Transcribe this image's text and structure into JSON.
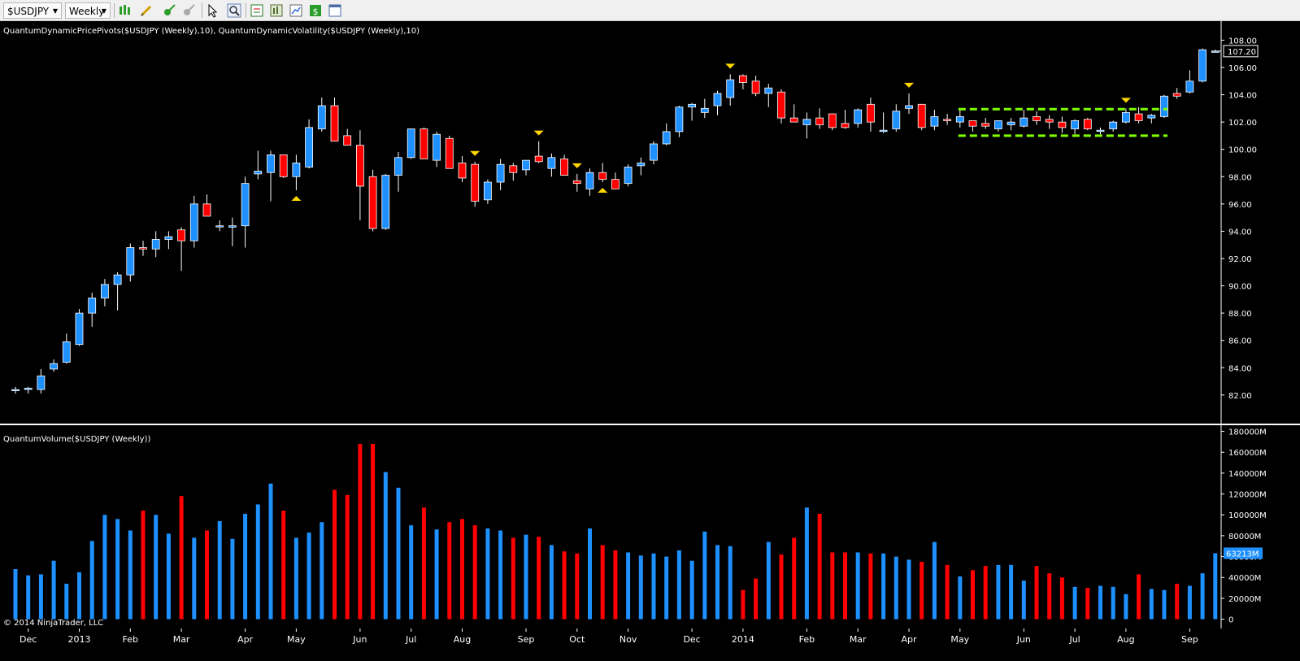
{
  "toolbar": {
    "instrument": "$USDJPY",
    "period": "Weekly",
    "icons": [
      "bar-type-icon",
      "pencil-icon",
      "crosshair-icon",
      "eraser-icon",
      "pointer-icon",
      "zoom-icon",
      "data-box-icon",
      "strategy-icon",
      "chart-properties-icon",
      "dollar-icon",
      "window-icon"
    ]
  },
  "colors": {
    "background": "#000000",
    "up_candle": "#1e90ff",
    "down_candle": "#ff0000",
    "wick": "#ffffff",
    "pivot_marker": "#ffd700",
    "channel": "#7fff00",
    "axis_text": "#ffffff"
  },
  "chart_data": [
    {
      "type": "candlestick",
      "label": "QuantumDynamicPricePivots($USDJPY (Weekly),10), QuantumDynamicVolatility($USDJPY (Weekly),10)",
      "ylim": [
        80.5,
        108.8
      ],
      "yticks": [
        82.0,
        84.0,
        86.0,
        88.0,
        90.0,
        92.0,
        94.0,
        96.0,
        98.0,
        100.0,
        102.0,
        104.0,
        106.0,
        108.0
      ],
      "last_price": "107.20",
      "x_labels": [
        {
          "text": "Dec",
          "i": 1
        },
        {
          "text": "2013",
          "i": 5
        },
        {
          "text": "Feb",
          "i": 9
        },
        {
          "text": "Mar",
          "i": 13
        },
        {
          "text": "Apr",
          "i": 18
        },
        {
          "text": "May",
          "i": 22
        },
        {
          "text": "Jun",
          "i": 27
        },
        {
          "text": "Jul",
          "i": 31
        },
        {
          "text": "Aug",
          "i": 35
        },
        {
          "text": "Sep",
          "i": 40
        },
        {
          "text": "Oct",
          "i": 44
        },
        {
          "text": "Nov",
          "i": 48
        },
        {
          "text": "Dec",
          "i": 53
        },
        {
          "text": "2014",
          "i": 57
        },
        {
          "text": "Feb",
          "i": 62
        },
        {
          "text": "Mar",
          "i": 66
        },
        {
          "text": "Apr",
          "i": 70
        },
        {
          "text": "May",
          "i": 74
        },
        {
          "text": "Jun",
          "i": 79
        },
        {
          "text": "Jul",
          "i": 83
        },
        {
          "text": "Aug",
          "i": 87
        },
        {
          "text": "Sep",
          "i": 92
        }
      ],
      "ohlc": [
        [
          82.4,
          82.6,
          82.1,
          82.4
        ],
        [
          82.4,
          82.6,
          82.1,
          82.5
        ],
        [
          82.4,
          83.9,
          82.1,
          83.4
        ],
        [
          83.9,
          84.6,
          83.7,
          84.3
        ],
        [
          84.4,
          86.5,
          84.3,
          85.9
        ],
        [
          85.7,
          88.3,
          85.6,
          88.0
        ],
        [
          88.0,
          89.5,
          87.0,
          89.1
        ],
        [
          89.1,
          90.5,
          88.5,
          90.1
        ],
        [
          90.1,
          91.0,
          88.2,
          90.8
        ],
        [
          90.8,
          93.1,
          90.3,
          92.8
        ],
        [
          92.8,
          93.3,
          92.2,
          92.7
        ],
        [
          92.7,
          94.0,
          92.1,
          93.4
        ],
        [
          93.4,
          94.0,
          92.7,
          93.6
        ],
        [
          94.1,
          94.3,
          91.1,
          93.3
        ],
        [
          93.3,
          96.6,
          92.8,
          96.0
        ],
        [
          96.0,
          96.7,
          95.1,
          95.1
        ],
        [
          94.4,
          94.8,
          94.0,
          94.4
        ],
        [
          94.3,
          95.0,
          92.9,
          94.4
        ],
        [
          94.4,
          98.0,
          92.8,
          97.5
        ],
        [
          98.2,
          99.9,
          97.8,
          98.4
        ],
        [
          98.3,
          99.9,
          96.2,
          99.6
        ],
        [
          99.6,
          99.6,
          97.9,
          98.0
        ],
        [
          98.0,
          99.6,
          97.0,
          99.0
        ],
        [
          98.7,
          102.2,
          98.6,
          101.6
        ],
        [
          101.5,
          103.8,
          101.3,
          103.2
        ],
        [
          103.2,
          103.8,
          100.8,
          100.6
        ],
        [
          101.0,
          101.5,
          100.4,
          100.3
        ],
        [
          100.3,
          101.4,
          94.8,
          97.3
        ],
        [
          98.0,
          98.5,
          94.0,
          94.2
        ],
        [
          94.2,
          98.2,
          94.1,
          98.1
        ],
        [
          98.1,
          99.8,
          96.9,
          99.4
        ],
        [
          99.4,
          101.5,
          99.3,
          101.5
        ],
        [
          101.5,
          101.6,
          99.3,
          99.3
        ],
        [
          99.2,
          101.3,
          98.7,
          101.1
        ],
        [
          100.8,
          101.0,
          98.6,
          98.6
        ],
        [
          99.0,
          99.5,
          97.6,
          97.9
        ],
        [
          98.9,
          99.1,
          95.8,
          96.2
        ],
        [
          96.3,
          97.8,
          96.0,
          97.6
        ],
        [
          97.6,
          99.3,
          97.0,
          98.9
        ],
        [
          98.8,
          99.0,
          97.7,
          98.3
        ],
        [
          98.5,
          99.1,
          98.1,
          99.2
        ],
        [
          99.5,
          100.6,
          99.0,
          99.1
        ],
        [
          98.6,
          99.7,
          98.0,
          99.4
        ],
        [
          99.3,
          99.6,
          98.1,
          98.1
        ],
        [
          97.7,
          98.2,
          96.9,
          97.5
        ],
        [
          97.1,
          98.6,
          96.6,
          98.3
        ],
        [
          98.3,
          99.0,
          97.6,
          97.8
        ],
        [
          97.8,
          98.3,
          97.3,
          97.1
        ],
        [
          97.5,
          98.9,
          97.3,
          98.7
        ],
        [
          98.8,
          99.4,
          98.1,
          99.0
        ],
        [
          99.2,
          100.6,
          98.9,
          100.4
        ],
        [
          100.4,
          101.9,
          100.3,
          101.3
        ],
        [
          101.3,
          103.2,
          100.9,
          103.1
        ],
        [
          103.1,
          103.4,
          102.1,
          103.3
        ],
        [
          102.7,
          103.7,
          102.3,
          103.0
        ],
        [
          103.2,
          104.3,
          102.5,
          104.1
        ],
        [
          103.8,
          105.5,
          103.2,
          105.1
        ],
        [
          105.4,
          105.5,
          104.4,
          104.9
        ],
        [
          105.0,
          105.4,
          103.9,
          104.1
        ],
        [
          104.1,
          104.8,
          103.1,
          104.5
        ],
        [
          104.2,
          104.4,
          101.9,
          102.3
        ],
        [
          102.3,
          103.3,
          102.0,
          102.0
        ],
        [
          101.8,
          102.7,
          100.8,
          102.2
        ],
        [
          102.3,
          103.0,
          101.5,
          101.8
        ],
        [
          102.6,
          102.6,
          101.4,
          101.6
        ],
        [
          101.9,
          102.9,
          101.5,
          101.6
        ],
        [
          101.9,
          103.0,
          101.6,
          102.9
        ],
        [
          103.3,
          103.8,
          101.3,
          102.0
        ],
        [
          101.4,
          102.7,
          101.2,
          101.4
        ],
        [
          101.5,
          103.3,
          101.3,
          102.8
        ],
        [
          103.0,
          104.1,
          102.6,
          103.2
        ],
        [
          103.3,
          103.3,
          101.4,
          101.6
        ],
        [
          101.7,
          102.9,
          101.4,
          102.4
        ],
        [
          102.2,
          102.6,
          101.8,
          102.1
        ],
        [
          102.0,
          102.9,
          101.6,
          102.4
        ],
        [
          102.1,
          102.1,
          101.3,
          101.7
        ],
        [
          101.9,
          102.3,
          101.5,
          101.7
        ],
        [
          101.5,
          102.1,
          101.3,
          102.1
        ],
        [
          101.8,
          102.3,
          101.4,
          102.0
        ],
        [
          101.7,
          102.9,
          101.6,
          102.3
        ],
        [
          102.4,
          102.8,
          101.8,
          102.1
        ],
        [
          102.2,
          102.5,
          101.5,
          102.0
        ],
        [
          102.0,
          102.4,
          101.2,
          101.6
        ],
        [
          101.5,
          102.2,
          101.1,
          102.1
        ],
        [
          102.2,
          102.3,
          101.4,
          101.5
        ],
        [
          101.4,
          101.6,
          101.1,
          101.4
        ],
        [
          101.5,
          102.1,
          101.3,
          102.0
        ],
        [
          102.0,
          103.0,
          101.9,
          102.7
        ],
        [
          102.6,
          103.1,
          101.9,
          102.1
        ],
        [
          102.3,
          102.6,
          101.9,
          102.5
        ],
        [
          102.4,
          104.0,
          102.3,
          103.9
        ],
        [
          104.1,
          104.5,
          103.7,
          103.9
        ],
        [
          104.2,
          105.8,
          104.1,
          105.0
        ],
        [
          105.0,
          107.4,
          104.9,
          107.3
        ],
        [
          107.2,
          107.3,
          107.1,
          107.2
        ]
      ],
      "pivot_highs": [
        36,
        41,
        44,
        56,
        70,
        87
      ],
      "pivot_lows": [
        22,
        46
      ],
      "channel": {
        "from": 74,
        "to": 90,
        "upper": 102.95,
        "lower": 101.0
      }
    },
    {
      "type": "bar",
      "label": "QuantumVolume($USDJPY (Weekly))",
      "ylim": [
        -5000000,
        182000000
      ],
      "yticks": [
        {
          "v": 180000000,
          "t": "180000M"
        },
        {
          "v": 160000000,
          "t": "160000M"
        },
        {
          "v": 140000000,
          "t": "140000M"
        },
        {
          "v": 120000000,
          "t": "120000M"
        },
        {
          "v": 100000000,
          "t": "100000M"
        },
        {
          "v": 80000000,
          "t": "80000M"
        },
        {
          "v": 60000000,
          "t": "60000M"
        },
        {
          "v": 40000000,
          "t": "40000M"
        },
        {
          "v": 20000000,
          "t": "20000M"
        },
        {
          "v": 0,
          "t": "0"
        }
      ],
      "last_value": "63213M",
      "values": [
        48000000,
        42000000,
        43000000,
        56000000,
        34000000,
        45000000,
        75000000,
        100000000,
        96000000,
        85000000,
        104000000,
        100000000,
        82000000,
        118000000,
        78000000,
        85000000,
        94000000,
        77000000,
        101000000,
        110000000,
        130000000,
        104000000,
        78000000,
        83000000,
        93000000,
        124000000,
        119000000,
        168000000,
        168000000,
        141000000,
        126000000,
        90000000,
        107000000,
        86000000,
        93000000,
        96000000,
        90000000,
        87000000,
        85000000,
        78000000,
        81000000,
        79000000,
        71000000,
        65000000,
        63000000,
        87000000,
        71000000,
        66000000,
        64000000,
        61000000,
        63000000,
        60000000,
        66000000,
        56000000,
        84000000,
        71000000,
        70000000,
        28000000,
        39000000,
        74000000,
        62000000,
        78000000,
        107000000,
        101000000,
        64000000,
        64000000,
        64000000,
        63000000,
        63000000,
        60000000,
        57000000,
        55000000,
        74000000,
        52000000,
        41000000,
        47000000,
        51000000,
        52000000,
        52000000,
        37000000,
        51000000,
        44000000,
        40000000,
        31000000,
        30000000,
        32000000,
        31000000,
        24000000,
        43000000,
        29000000,
        28000000,
        34000000,
        32000000,
        44000000,
        63213000
      ],
      "colors": "r"
    }
  ],
  "copyright": "© 2014 NinjaTrader, LLC"
}
